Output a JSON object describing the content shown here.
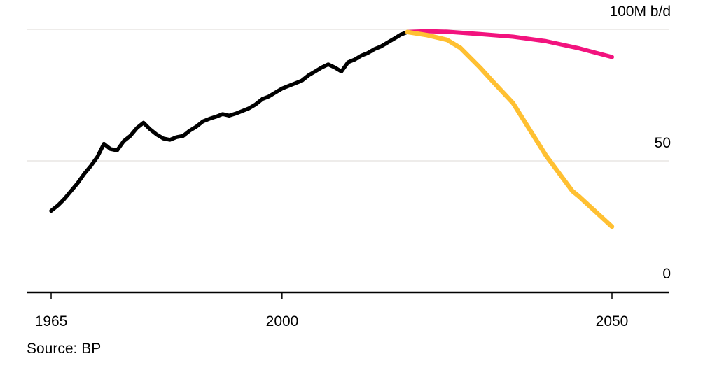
{
  "chart_data": {
    "type": "line",
    "title": "",
    "unit_label": "100M b/d",
    "source": "Source: BP",
    "x_axis": {
      "range_years": [
        1961.3,
        2058.6
      ],
      "ticks": [
        {
          "year": 1965,
          "label": "1965"
        },
        {
          "year": 2000,
          "label": "2000"
        },
        {
          "year": 2050,
          "label": "2050"
        }
      ]
    },
    "y_axis": {
      "range": [
        0,
        100
      ],
      "unit": "M b/d",
      "gridline_values": [
        100,
        50
      ],
      "ticks": [
        {
          "value": 100,
          "label": "100M b/d"
        },
        {
          "value": 50,
          "label": "50"
        },
        {
          "value": 0,
          "label": "0"
        }
      ]
    },
    "colors": {
      "historical": "#000000",
      "scenario_pink": "#F2137E",
      "scenario_yellow": "#FFC032",
      "gridline": "#E8E6E3",
      "axis": "#000000"
    },
    "series": [
      {
        "name": "historical-oil-demand",
        "color_key": "historical",
        "stroke_width": 5.5,
        "points": [
          [
            1965,
            31
          ],
          [
            1966,
            33
          ],
          [
            1967,
            35.5
          ],
          [
            1968,
            38.5
          ],
          [
            1969,
            41.5
          ],
          [
            1970,
            45
          ],
          [
            1971,
            48
          ],
          [
            1972,
            51.5
          ],
          [
            1973,
            56.5
          ],
          [
            1974,
            54.5
          ],
          [
            1975,
            54
          ],
          [
            1976,
            57.5
          ],
          [
            1977,
            59.5
          ],
          [
            1978,
            62.5
          ],
          [
            1979,
            64.5
          ],
          [
            1980,
            62
          ],
          [
            1981,
            60
          ],
          [
            1982,
            58.5
          ],
          [
            1983,
            58
          ],
          [
            1984,
            59
          ],
          [
            1985,
            59.5
          ],
          [
            1986,
            61.5
          ],
          [
            1987,
            63
          ],
          [
            1988,
            65
          ],
          [
            1989,
            66
          ],
          [
            1990,
            66.8
          ],
          [
            1991,
            67.8
          ],
          [
            1992,
            67.2
          ],
          [
            1993,
            68
          ],
          [
            1994,
            69
          ],
          [
            1995,
            70
          ],
          [
            1996,
            71.5
          ],
          [
            1997,
            73.5
          ],
          [
            1998,
            74.5
          ],
          [
            1999,
            76
          ],
          [
            2000,
            77.5
          ],
          [
            2001,
            78.5
          ],
          [
            2002,
            79.5
          ],
          [
            2003,
            80.5
          ],
          [
            2004,
            82.5
          ],
          [
            2005,
            84
          ],
          [
            2006,
            85.5
          ],
          [
            2007,
            86.7
          ],
          [
            2008,
            85.5
          ],
          [
            2009,
            84
          ],
          [
            2010,
            87.5
          ],
          [
            2011,
            88.5
          ],
          [
            2012,
            90
          ],
          [
            2013,
            91
          ],
          [
            2014,
            92.5
          ],
          [
            2015,
            93.5
          ],
          [
            2016,
            95
          ],
          [
            2017,
            96.5
          ],
          [
            2018,
            98
          ],
          [
            2019,
            99
          ]
        ]
      },
      {
        "name": "scenario-pink-projection",
        "color_key": "scenario_pink",
        "stroke_width": 6,
        "points": [
          [
            2019,
            99
          ],
          [
            2022,
            99.3
          ],
          [
            2025,
            99.1
          ],
          [
            2030,
            98.2
          ],
          [
            2035,
            97.2
          ],
          [
            2040,
            95.5
          ],
          [
            2045,
            92.8
          ],
          [
            2050,
            89.5
          ]
        ]
      },
      {
        "name": "scenario-yellow-projection",
        "color_key": "scenario_yellow",
        "stroke_width": 6.5,
        "points": [
          [
            2019,
            99
          ],
          [
            2022,
            97.8
          ],
          [
            2025,
            96
          ],
          [
            2027,
            93
          ],
          [
            2030,
            85.5
          ],
          [
            2032,
            80
          ],
          [
            2035,
            72
          ],
          [
            2040,
            52
          ],
          [
            2044,
            38.5
          ],
          [
            2045,
            36.5
          ],
          [
            2050,
            25
          ]
        ]
      }
    ]
  }
}
